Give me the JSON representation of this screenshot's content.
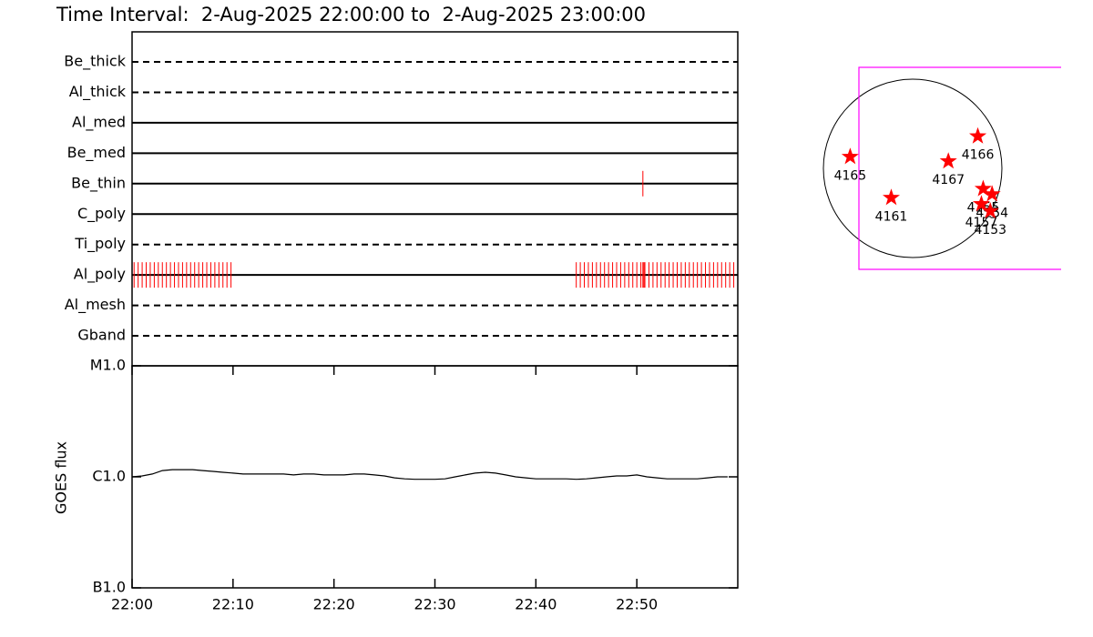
{
  "chart_data": [
    {
      "type": "timeline",
      "title": "Time Interval:  2-Aug-2025 22:00:00 to  2-Aug-2025 23:00:00",
      "categories": [
        "Be_thick",
        "Al_thick",
        "Al_med",
        "Be_med",
        "Be_thin",
        "C_poly",
        "Ti_poly",
        "Al_poly",
        "Al_mesh",
        "Gband"
      ],
      "line_styles": [
        "dashed",
        "dashed",
        "solid",
        "solid",
        "solid",
        "solid",
        "dashed",
        "solid",
        "dashed",
        "dashed"
      ],
      "color": "#ff0000",
      "xlim": [
        0,
        60
      ],
      "observations": [
        [],
        [],
        [],
        [],
        [
          50.6
        ],
        [],
        [],
        [
          0.2,
          0.6,
          1.0,
          1.4,
          1.8,
          2.2,
          2.6,
          3.0,
          3.4,
          3.8,
          4.2,
          4.6,
          5.0,
          5.4,
          5.8,
          6.2,
          6.6,
          7.0,
          7.4,
          7.8,
          8.2,
          8.6,
          9.0,
          9.4,
          9.8,
          44.0,
          44.4,
          44.8,
          45.2,
          45.6,
          46.0,
          46.4,
          46.8,
          47.2,
          47.6,
          48.0,
          48.4,
          48.8,
          49.2,
          49.6,
          50.0,
          50.4,
          50.6,
          50.7,
          50.8,
          51.2,
          51.6,
          52.0,
          52.4,
          52.8,
          53.2,
          53.6,
          54.0,
          54.4,
          54.8,
          55.2,
          55.6,
          56.0,
          56.4,
          56.8,
          57.2,
          57.6,
          58.0,
          58.4,
          58.8,
          59.2,
          59.6
        ],
        [],
        []
      ]
    },
    {
      "type": "line",
      "y_label": "GOES flux",
      "log_scale": true,
      "color": "#000000",
      "xlim": [
        0,
        60
      ],
      "xticks": [
        {
          "value": 0,
          "label": "22:00"
        },
        {
          "value": 10,
          "label": "22:10"
        },
        {
          "value": 20,
          "label": "22:20"
        },
        {
          "value": 30,
          "label": "22:30"
        },
        {
          "value": 40,
          "label": "22:40"
        },
        {
          "value": 50,
          "label": "22:50"
        }
      ],
      "ylim": [
        1e-07,
        1e-05
      ],
      "yticks": [
        {
          "value": 1e-05,
          "label": "M1.0"
        },
        {
          "value": 1e-06,
          "label": "C1.0"
        },
        {
          "value": 1e-07,
          "label": "B1.0"
        }
      ],
      "x": [
        0,
        1,
        2,
        3,
        4,
        5,
        6,
        7,
        8,
        9,
        10,
        11,
        12,
        13,
        14,
        15,
        16,
        17,
        18,
        19,
        20,
        21,
        22,
        23,
        24,
        25,
        26,
        27,
        28,
        29,
        30,
        31,
        32,
        33,
        34,
        35,
        36,
        37,
        38,
        39,
        40,
        41,
        42,
        43,
        44,
        45,
        46,
        47,
        48,
        49,
        50,
        51,
        52,
        53,
        54,
        55,
        56,
        57,
        58,
        59
      ],
      "values": [
        1e-06,
        1.02e-06,
        1.06e-06,
        1.14e-06,
        1.16e-06,
        1.16e-06,
        1.16e-06,
        1.14e-06,
        1.12e-06,
        1.1e-06,
        1.08e-06,
        1.06e-06,
        1.06e-06,
        1.06e-06,
        1.06e-06,
        1.06e-06,
        1.04e-06,
        1.06e-06,
        1.06e-06,
        1.04e-06,
        1.04e-06,
        1.04e-06,
        1.06e-06,
        1.06e-06,
        1.04e-06,
        1.02e-06,
        9.8e-07,
        9.6e-07,
        9.5e-07,
        9.5e-07,
        9.5e-07,
        9.6e-07,
        1e-06,
        1.04e-06,
        1.08e-06,
        1.1e-06,
        1.08e-06,
        1.04e-06,
        1e-06,
        9.8e-07,
        9.6e-07,
        9.6e-07,
        9.6e-07,
        9.6e-07,
        9.5e-07,
        9.6e-07,
        9.8e-07,
        1e-06,
        1.02e-06,
        1.02e-06,
        1.04e-06,
        1e-06,
        9.8e-07,
        9.6e-07,
        9.6e-07,
        9.6e-07,
        9.6e-07,
        9.8e-07,
        1e-06,
        1e-06
      ]
    },
    {
      "type": "map",
      "color": "#ff0000",
      "regions": [
        {
          "label": "4165",
          "x": -0.7,
          "y": 0.13
        },
        {
          "label": "4161",
          "x": -0.24,
          "y": -0.33
        },
        {
          "label": "4167",
          "x": 0.4,
          "y": 0.08
        },
        {
          "label": "4166",
          "x": 0.73,
          "y": 0.36
        },
        {
          "label": "4155",
          "x": 0.79,
          "y": -0.23
        },
        {
          "label": "4154",
          "x": 0.89,
          "y": -0.29
        },
        {
          "label": "4157",
          "x": 0.77,
          "y": -0.4
        },
        {
          "label": "4153",
          "x": 0.87,
          "y": -0.48
        }
      ]
    }
  ]
}
